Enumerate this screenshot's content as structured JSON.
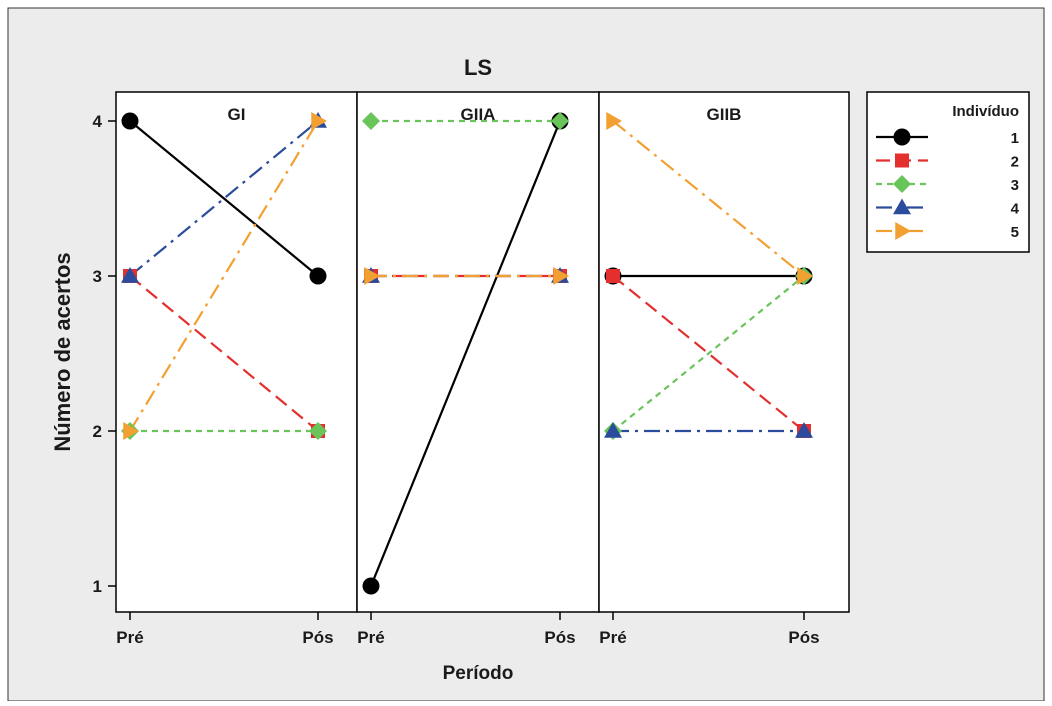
{
  "chart_data": {
    "type": "line",
    "title": "LS",
    "xlabel": "Período",
    "ylabel": "Número de acertos",
    "ylim": [
      1,
      4
    ],
    "yticks": [
      1,
      2,
      3,
      4
    ],
    "x_categories": [
      "Pré",
      "Pós"
    ],
    "grid": false,
    "background": "#ececec",
    "legend": {
      "placement": "right",
      "title": "Indivíduo",
      "entries": [
        "1",
        "2",
        "3",
        "4",
        "5"
      ]
    },
    "series_styles": [
      {
        "name": "1",
        "color": "#000000",
        "marker": "circle",
        "dash": "solid"
      },
      {
        "name": "2",
        "color": "#e3302f",
        "marker": "square",
        "dash": "long-dash"
      },
      {
        "name": "3",
        "color": "#69c45a",
        "marker": "diamond",
        "dash": "short-dash"
      },
      {
        "name": "4",
        "color": "#2b4c9c",
        "marker": "triangle-up",
        "dash": "dash-dot"
      },
      {
        "name": "5",
        "color": "#f2a032",
        "marker": "triangle-right",
        "dash": "dash-dot"
      }
    ],
    "panels": [
      {
        "label": "GI",
        "series": [
          {
            "name": "1",
            "values": [
              4,
              3
            ]
          },
          {
            "name": "2",
            "values": [
              3,
              2
            ]
          },
          {
            "name": "3",
            "values": [
              2,
              2
            ]
          },
          {
            "name": "4",
            "values": [
              3,
              4
            ]
          },
          {
            "name": "5",
            "values": [
              2,
              4
            ]
          }
        ]
      },
      {
        "label": "GIIA",
        "series": [
          {
            "name": "1",
            "values": [
              1,
              4
            ]
          },
          {
            "name": "2",
            "values": [
              3,
              3
            ]
          },
          {
            "name": "3",
            "values": [
              4,
              4
            ]
          },
          {
            "name": "4",
            "values": [
              3,
              3
            ]
          },
          {
            "name": "5",
            "values": [
              3,
              3
            ]
          }
        ]
      },
      {
        "label": "GIIB",
        "series": [
          {
            "name": "1",
            "values": [
              3,
              3
            ]
          },
          {
            "name": "2",
            "values": [
              3,
              2
            ]
          },
          {
            "name": "3",
            "values": [
              2,
              3
            ]
          },
          {
            "name": "4",
            "values": [
              2,
              2
            ]
          },
          {
            "name": "5",
            "values": [
              4,
              3
            ]
          }
        ]
      }
    ]
  }
}
